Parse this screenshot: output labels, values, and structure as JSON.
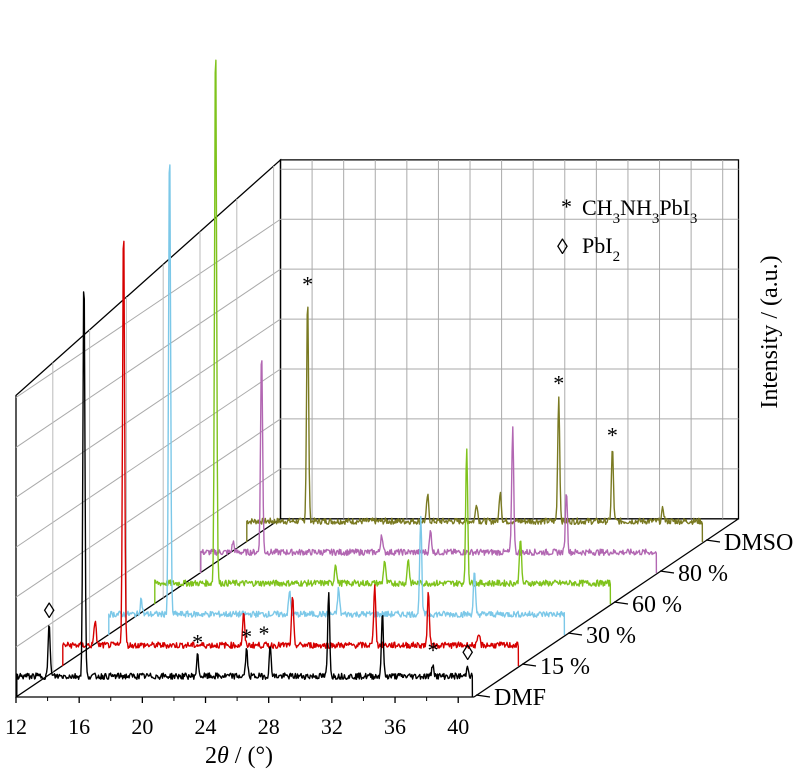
{
  "chart_data": {
    "type": "line",
    "title": "",
    "xlabel": "2θ / (°)",
    "ylabel": "Intensity / (a.u.)",
    "xlim": [
      12,
      41
    ],
    "x_ticks": [
      "12",
      "16",
      "20",
      "24",
      "28",
      "32",
      "36",
      "40"
    ],
    "grid": true,
    "legend": [
      {
        "symbol": "*",
        "label": "CH3NH3PbI3"
      },
      {
        "symbol": "◊",
        "label": "PbI2"
      }
    ],
    "series": [
      {
        "name": "DMF",
        "color": "#000000",
        "peaks": [
          {
            "x": 14.1,
            "y": 50
          },
          {
            "x": 16.3,
            "y": 390
          },
          {
            "x": 23.5,
            "y": 20
          },
          {
            "x": 26.6,
            "y": 25
          },
          {
            "x": 28.1,
            "y": 28
          },
          {
            "x": 31.8,
            "y": 80
          },
          {
            "x": 35.2,
            "y": 60
          },
          {
            "x": 38.4,
            "y": 12
          },
          {
            "x": 40.6,
            "y": 10
          }
        ]
      },
      {
        "name": "15 %",
        "color": "#d60000",
        "peaks": [
          {
            "x": 14.1,
            "y": 25
          },
          {
            "x": 15.9,
            "y": 410
          },
          {
            "x": 23.5,
            "y": 30
          },
          {
            "x": 26.6,
            "y": 45
          },
          {
            "x": 31.8,
            "y": 60
          },
          {
            "x": 35.2,
            "y": 50
          },
          {
            "x": 38.4,
            "y": 10
          }
        ]
      },
      {
        "name": "30 %",
        "color": "#7cc8e8",
        "peaks": [
          {
            "x": 14.1,
            "y": 15
          },
          {
            "x": 15.9,
            "y": 455
          },
          {
            "x": 23.5,
            "y": 22
          },
          {
            "x": 26.6,
            "y": 24
          },
          {
            "x": 31.8,
            "y": 95
          },
          {
            "x": 35.2,
            "y": 40
          }
        ]
      },
      {
        "name": "60 %",
        "color": "#7fc31c",
        "peaks": [
          {
            "x": 15.9,
            "y": 530
          },
          {
            "x": 23.5,
            "y": 20
          },
          {
            "x": 26.6,
            "y": 22
          },
          {
            "x": 28.1,
            "y": 24
          },
          {
            "x": 31.8,
            "y": 130
          },
          {
            "x": 35.2,
            "y": 45
          }
        ]
      },
      {
        "name": "80 %",
        "color": "#b267b2",
        "peaks": [
          {
            "x": 14.1,
            "y": 10
          },
          {
            "x": 15.9,
            "y": 195
          },
          {
            "x": 23.5,
            "y": 18
          },
          {
            "x": 26.6,
            "y": 20
          },
          {
            "x": 31.8,
            "y": 120
          },
          {
            "x": 35.2,
            "y": 60
          }
        ]
      },
      {
        "name": "DMSO",
        "color": "#7a7a22",
        "peaks": [
          {
            "x": 15.9,
            "y": 215
          },
          {
            "x": 23.5,
            "y": 25
          },
          {
            "x": 26.6,
            "y": 18
          },
          {
            "x": 28.1,
            "y": 30
          },
          {
            "x": 31.8,
            "y": 120
          },
          {
            "x": 35.2,
            "y": 70
          },
          {
            "x": 38.4,
            "y": 12
          }
        ]
      }
    ],
    "annotations": [
      {
        "text": "◊",
        "series": "DMF",
        "x": 14.1
      },
      {
        "text": "*",
        "series": "DMF",
        "x": 23.5
      },
      {
        "text": "*",
        "series": "DMF",
        "x": 26.6
      },
      {
        "text": "*",
        "series": "DMF",
        "x": 27.7
      },
      {
        "text": "*",
        "series": "DMF",
        "x": 38.4
      },
      {
        "text": "◊",
        "series": "DMF",
        "x": 40.6
      },
      {
        "text": "*",
        "series": "DMSO",
        "x": 15.9
      },
      {
        "text": "*",
        "series": "DMSO",
        "x": 31.8
      },
      {
        "text": "*",
        "series": "DMSO",
        "x": 35.2
      }
    ]
  }
}
